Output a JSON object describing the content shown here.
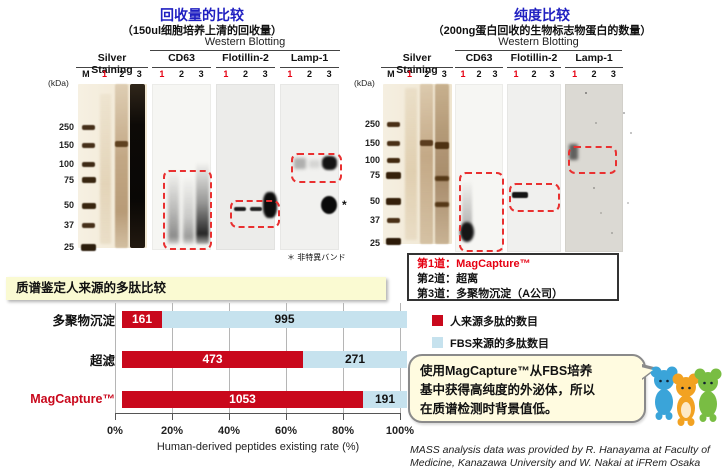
{
  "left_panel": {
    "title": "回收量的比较",
    "subtitle": "（150ul细胞培养上清的回收量）",
    "western_blotting_label": "Western Blotting",
    "silver_staining_label": "Silver Staining",
    "silver_lanes": [
      "M",
      "1",
      "2",
      "3"
    ],
    "panels": [
      {
        "label": "CD63",
        "lanes": [
          "1",
          "2",
          "3"
        ]
      },
      {
        "label": "Flotillin-2",
        "lanes": [
          "1",
          "2",
          "3"
        ]
      },
      {
        "label": "Lamp-1",
        "lanes": [
          "1",
          "2",
          "3"
        ]
      }
    ],
    "kda_label": "(kDa)",
    "markers": [
      "250",
      "150",
      "100",
      "75",
      "50",
      "37",
      "25"
    ],
    "nonspecific_note": "＊ 非特異バンド",
    "asterisk": "*"
  },
  "right_panel": {
    "title": "纯度比较",
    "subtitle": "（200ng蛋白回收的生物标志物蛋白的数量）",
    "western_blotting_label": "Western Blotting",
    "silver_staining_label": "Silver Staining",
    "silver_lanes": [
      "M",
      "1",
      "2",
      "3"
    ],
    "panels": [
      {
        "label": "CD63",
        "lanes": [
          "1",
          "2",
          "3"
        ]
      },
      {
        "label": "Flotillin-2",
        "lanes": [
          "1",
          "2",
          "3"
        ]
      },
      {
        "label": "Lamp-1",
        "lanes": [
          "1",
          "2",
          "3"
        ]
      }
    ],
    "kda_label": "(kDa)",
    "markers": [
      "250",
      "150",
      "100",
      "75",
      "50",
      "37",
      "25"
    ]
  },
  "lane_legend": {
    "line1": "第1道：MagCapture™",
    "line2": "第2道：超离",
    "line3": "第3道：多聚物沉淀（A公司）"
  },
  "mass_chart": {
    "banner_title": "质谱鉴定人来源的多肽比较",
    "x_ticks": [
      "0%",
      "20%",
      "40%",
      "60%",
      "80%",
      "100%"
    ],
    "xlabel": "Human-derived peptides existing rate (%)",
    "legend": [
      {
        "label": "人来源多肽的数目",
        "color": "#c9081c"
      },
      {
        "label": "FBS来源的多肽数目",
        "color": "#c6e2ee"
      }
    ]
  },
  "chart_data": {
    "type": "bar",
    "orientation": "horizontal",
    "stacked": true,
    "normalized_to_100_percent": true,
    "title": "质谱鉴定人来源的多肽比较",
    "categories": [
      "多聚物沉淀",
      "超滤",
      "MagCapture™"
    ],
    "series": [
      {
        "name": "人来源多肽的数目",
        "color": "#c9081c",
        "values": [
          161,
          473,
          1053
        ]
      },
      {
        "name": "FBS来源的多肽数目",
        "color": "#c6e2ee",
        "values": [
          995,
          271,
          191
        ]
      }
    ],
    "xlabel": "Human-derived peptides existing rate (%)",
    "x_tick_labels": [
      "0%",
      "20%",
      "40%",
      "60%",
      "80%",
      "100%"
    ],
    "xlim": [
      0,
      100
    ],
    "grid": true,
    "legend_position": "right"
  },
  "bubble": {
    "line1": "使用MagCapture™从FBS培养",
    "line2": "基中获得高纯度的外泌体，所以",
    "line3": "在质谱检测时背景值低。"
  },
  "credit": {
    "line1": "MASS analysis data was provided by R. Hanayama at Faculty of",
    "line2": "Medicine, Kanazawa University and W. Nakai at iFRem Osaka"
  },
  "colors": {
    "title_blue": "#1f1fc1",
    "accent_red": "#e60012",
    "bar_red": "#c9081c",
    "bar_blue": "#c6e2ee",
    "banner_bg": "#fafad2",
    "bubble_bg": "#fffbe0"
  }
}
